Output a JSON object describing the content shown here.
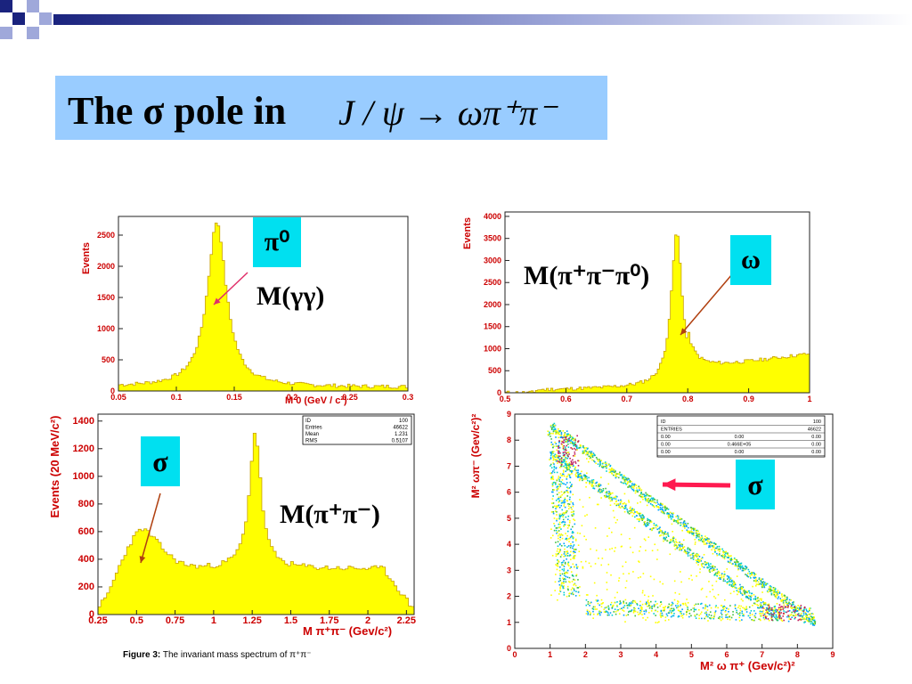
{
  "slide": {
    "title": "The σ pole in",
    "formula": "J / ψ → ωπ⁺π⁻",
    "caption_prefix": "Figure 3:",
    "caption_text": "The invariant mass spectrum of π⁺π⁻"
  },
  "colors": {
    "hist_fill": "#ffff00",
    "hist_edge": "#c8a000",
    "axis": "#cc0000",
    "label_bg": "#00e0f0",
    "title_bg": "#99ccff"
  },
  "labels": {
    "pi0": "π⁰",
    "gg": "M(γγ)",
    "omega": "ω",
    "m3pi": "M(π⁺π⁻π⁰)",
    "sigma1": "σ",
    "mpipi": "M(π⁺π⁻)",
    "sigma2": "σ"
  },
  "chart_data": [
    {
      "type": "bar",
      "ylabel": "Events",
      "xlabel": "M  0 (GeV / c²)",
      "xlim": [
        0.05,
        0.3
      ],
      "ylim": [
        0,
        2800
      ],
      "xticks": [
        "0.05",
        "0.1",
        "0.15",
        "0.2",
        "0.25",
        "0.3"
      ],
      "yticks": [
        "0",
        "500",
        "1000",
        "1500",
        "2000",
        "2500"
      ],
      "peak": {
        "mean": 0.135,
        "height": 2650,
        "width": 0.011
      },
      "background": 60
    },
    {
      "type": "bar",
      "ylabel": "Events",
      "xlabel": "",
      "xlim": [
        0.5,
        1.0
      ],
      "ylim": [
        0,
        4100
      ],
      "xticks": [
        "0.5",
        "0.6",
        "0.7",
        "0.8",
        "0.9",
        "1"
      ],
      "yticks": [
        "0",
        "500",
        "1000",
        "1500",
        "2000",
        "2500",
        "3000",
        "3500",
        "4000"
      ],
      "peak": {
        "mean": 0.782,
        "height": 3500,
        "width": 0.011
      },
      "background": 100
    },
    {
      "type": "bar",
      "ylabel": "Events (20 MeV/c²)",
      "xlabel": "M π⁺π⁻ (Gev/c²)",
      "xlim": [
        0.25,
        2.3
      ],
      "ylim": [
        0,
        1450
      ],
      "xticks": [
        "0.25",
        "0.5",
        "0.75",
        "1",
        "1.25",
        "1.5",
        "1.75",
        "2",
        "2.25"
      ],
      "yticks": [
        "0",
        "200",
        "400",
        "600",
        "800",
        "1000",
        "1200",
        "1400"
      ],
      "stats": [
        [
          "ID",
          "100"
        ],
        [
          "Entries",
          "46622"
        ],
        [
          "Mean",
          "1.231"
        ],
        [
          "RMS",
          "0.5107"
        ]
      ],
      "peak": {
        "mean": 1.27,
        "height": 1320,
        "width": 0.045
      },
      "bump": {
        "mean": 0.5,
        "height": 620,
        "width": 0.14
      }
    },
    {
      "type": "scatter",
      "ylabel": "M² ωπ⁻ (Gev/c²)²",
      "xlabel": "M² ω π⁺ (Gev/c²)²",
      "xlim": [
        0,
        9
      ],
      "ylim": [
        0,
        9
      ],
      "xticks": [
        "0",
        "1",
        "2",
        "3",
        "4",
        "5",
        "6",
        "7",
        "8",
        "9"
      ],
      "yticks": [
        "0",
        "1",
        "2",
        "3",
        "4",
        "5",
        "6",
        "7",
        "8",
        "9"
      ],
      "stats": [
        [
          "ID",
          "",
          "100"
        ],
        [
          "ENTRIES",
          "",
          "46622"
        ],
        [
          "0.00",
          "0.00",
          "0.00"
        ],
        [
          "0.00",
          "0.466E+05",
          "0.00"
        ],
        [
          "0.00",
          "0.00",
          "0.00"
        ]
      ]
    }
  ]
}
